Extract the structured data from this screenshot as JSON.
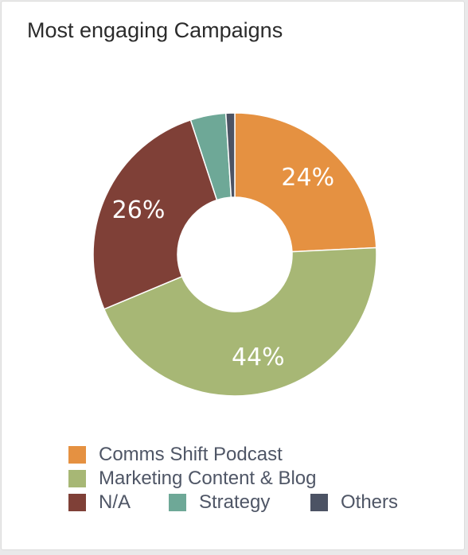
{
  "chart_data": {
    "type": "pie",
    "donut": true,
    "title": "Most engaging Campaigns",
    "slices": [
      {
        "name": "Comms Shift Podcast",
        "value": 24,
        "label": "24%",
        "color": "#e59141"
      },
      {
        "name": "Marketing Content & Blog",
        "value": 44,
        "label": "44%",
        "color": "#a7b775"
      },
      {
        "name": "N/A",
        "value": 26,
        "label": "26%",
        "color": "#7f4037"
      },
      {
        "name": "Strategy",
        "value": 4,
        "label": "",
        "color": "#6ea897"
      },
      {
        "name": "Others",
        "value": 1,
        "label": "",
        "color": "#4c5364"
      }
    ],
    "legend_position": "bottom"
  }
}
